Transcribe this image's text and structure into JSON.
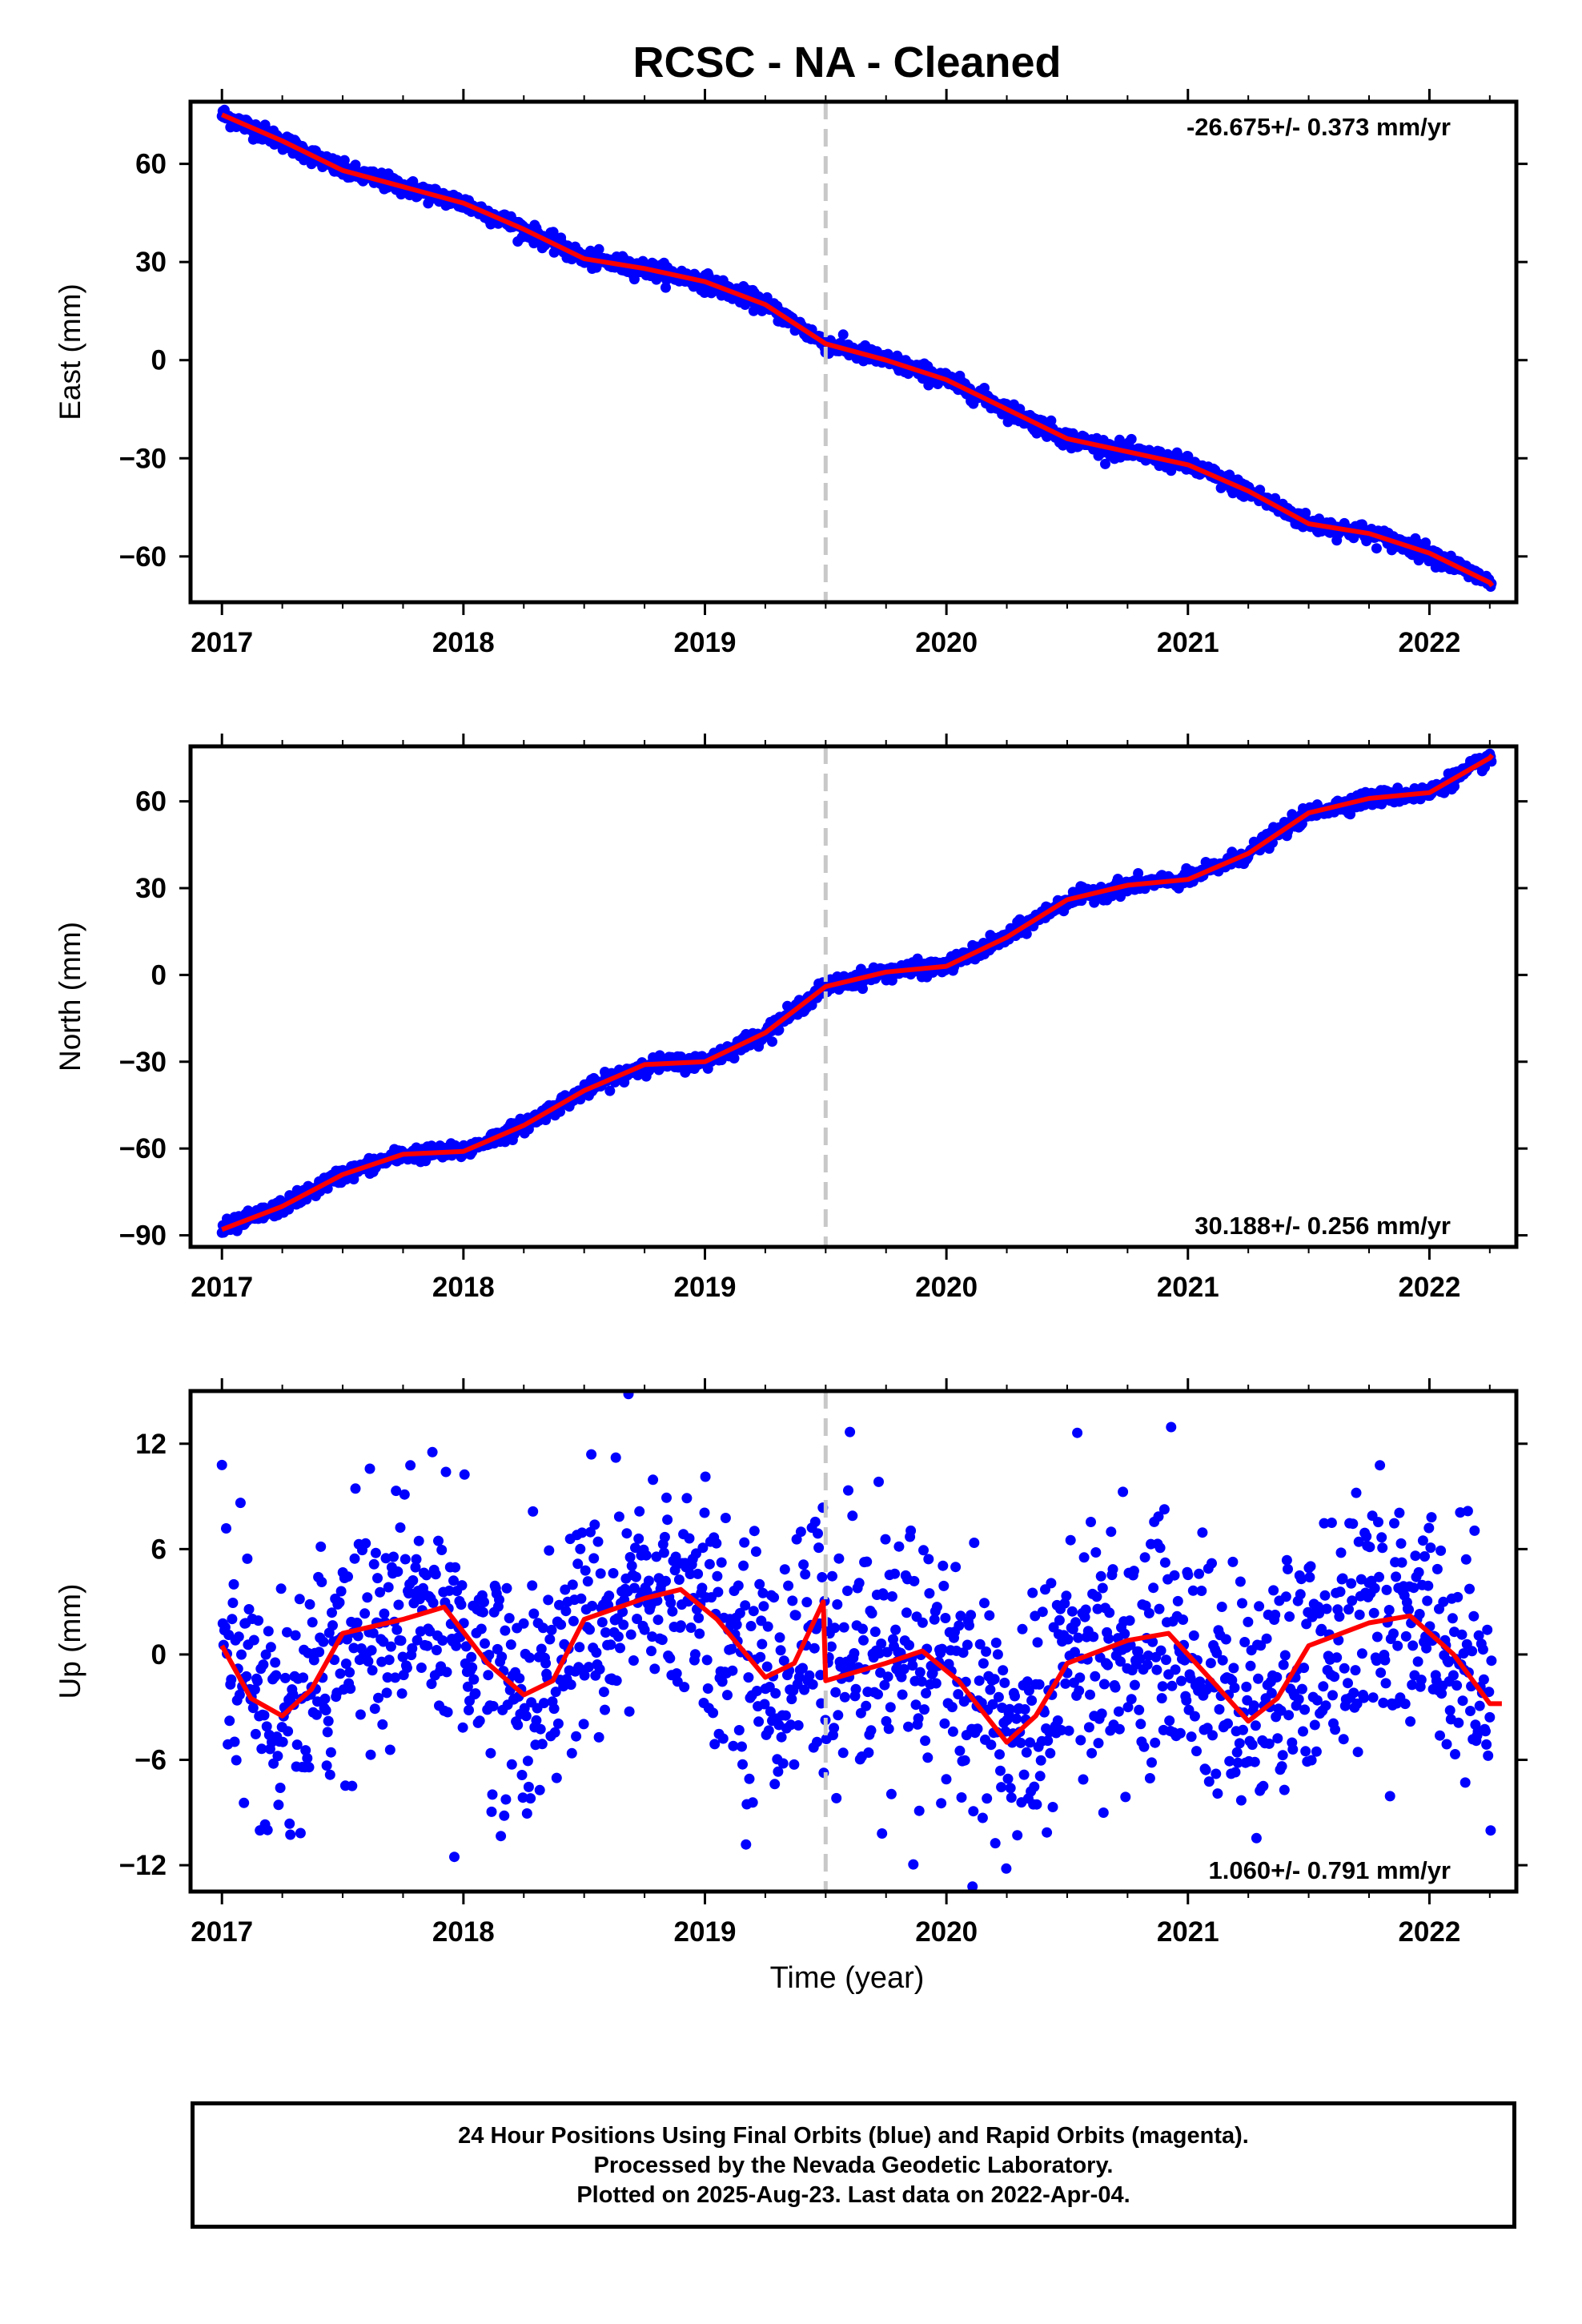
{
  "title": "RCSC  - NA - Cleaned",
  "xlabel": "Time (year)",
  "footer": {
    "line1": "24 Hour Positions Using Final Orbits (blue) and Rapid Orbits (magenta).",
    "line2": "Processed by the Nevada Geodetic Laboratory.",
    "line3": "Plotted on 2025-Aug-23. Last data on 2022-Apr-04."
  },
  "colors": {
    "points": "#0000ff",
    "fit": "#ff0000",
    "event_line": "#c8c8c8",
    "frame": "#000000"
  },
  "chart_data": [
    {
      "type": "scatter",
      "ylabel": "East (mm)",
      "rate_label": "-26.675+/- 0.373 mm/yr",
      "rate_position": "top-right",
      "xlim": [
        2016.87,
        2022.36
      ],
      "ylim": [
        -74,
        79
      ],
      "yticks": [
        -60,
        -30,
        0,
        30,
        60
      ],
      "xticks": [
        2017,
        2018,
        2019,
        2020,
        2021,
        2022
      ],
      "event_line_x": 2019.5,
      "noise": 1.3,
      "fit": [
        [
          2017.0,
          75
        ],
        [
          2017.25,
          67
        ],
        [
          2017.5,
          58
        ],
        [
          2017.75,
          53
        ],
        [
          2018.0,
          48
        ],
        [
          2018.25,
          40
        ],
        [
          2018.5,
          31
        ],
        [
          2018.75,
          28
        ],
        [
          2019.0,
          24
        ],
        [
          2019.25,
          17
        ],
        [
          2019.5,
          5
        ],
        [
          2019.75,
          0
        ],
        [
          2020.0,
          -6
        ],
        [
          2020.25,
          -15
        ],
        [
          2020.5,
          -24
        ],
        [
          2020.75,
          -28
        ],
        [
          2021.0,
          -32
        ],
        [
          2021.25,
          -40
        ],
        [
          2021.5,
          -50
        ],
        [
          2021.75,
          -53
        ],
        [
          2022.0,
          -59
        ],
        [
          2022.25,
          -68
        ],
        [
          2022.26,
          -69
        ]
      ]
    },
    {
      "type": "scatter",
      "ylabel": "North (mm)",
      "rate_label": "30.188+/- 0.256 mm/yr",
      "rate_position": "bottom-right",
      "xlim": [
        2016.87,
        2022.36
      ],
      "ylim": [
        -94,
        79
      ],
      "yticks": [
        -90,
        -60,
        -30,
        0,
        30,
        60
      ],
      "xticks": [
        2017,
        2018,
        2019,
        2020,
        2021,
        2022
      ],
      "event_line_x": 2019.5,
      "noise": 1.3,
      "fit": [
        [
          2017.0,
          -88
        ],
        [
          2017.25,
          -80
        ],
        [
          2017.5,
          -69
        ],
        [
          2017.75,
          -62
        ],
        [
          2018.0,
          -61
        ],
        [
          2018.25,
          -52
        ],
        [
          2018.5,
          -40
        ],
        [
          2018.75,
          -31
        ],
        [
          2019.0,
          -30
        ],
        [
          2019.25,
          -20
        ],
        [
          2019.5,
          -4
        ],
        [
          2019.75,
          1
        ],
        [
          2020.0,
          3
        ],
        [
          2020.25,
          13
        ],
        [
          2020.5,
          26
        ],
        [
          2020.75,
          31
        ],
        [
          2021.0,
          33
        ],
        [
          2021.25,
          42
        ],
        [
          2021.5,
          56
        ],
        [
          2021.75,
          61
        ],
        [
          2022.0,
          63
        ],
        [
          2022.25,
          75
        ],
        [
          2022.26,
          76
        ]
      ]
    },
    {
      "type": "scatter",
      "ylabel": "Up (mm)",
      "rate_label": "1.060+/- 0.791 mm/yr",
      "rate_position": "bottom-right",
      "xlim": [
        2016.87,
        2022.36
      ],
      "ylim": [
        -13.5,
        15
      ],
      "yticks": [
        -12,
        -6,
        0,
        6,
        12
      ],
      "xticks": [
        2017,
        2018,
        2019,
        2020,
        2021,
        2022
      ],
      "event_line_x": 2019.5,
      "noise": 3.6,
      "fit": [
        [
          2017.0,
          0.5
        ],
        [
          2017.12,
          -2.5
        ],
        [
          2017.25,
          -3.5
        ],
        [
          2017.37,
          -2
        ],
        [
          2017.5,
          1.2
        ],
        [
          2017.75,
          2
        ],
        [
          2017.92,
          2.7
        ],
        [
          2018.1,
          -0.5
        ],
        [
          2018.25,
          -2.3
        ],
        [
          2018.37,
          -1.5
        ],
        [
          2018.5,
          2
        ],
        [
          2018.75,
          3.2
        ],
        [
          2018.9,
          3.7
        ],
        [
          2019.05,
          2
        ],
        [
          2019.25,
          -1.3
        ],
        [
          2019.37,
          -0.5
        ],
        [
          2019.49,
          3
        ],
        [
          2019.5,
          -1.5
        ],
        [
          2019.75,
          -0.5
        ],
        [
          2019.9,
          0.2
        ],
        [
          2020.05,
          -1.5
        ],
        [
          2020.25,
          -5
        ],
        [
          2020.37,
          -3.5
        ],
        [
          2020.5,
          -0.5
        ],
        [
          2020.75,
          0.8
        ],
        [
          2020.92,
          1.2
        ],
        [
          2021.1,
          -1.5
        ],
        [
          2021.25,
          -3.8
        ],
        [
          2021.37,
          -2.5
        ],
        [
          2021.5,
          0.5
        ],
        [
          2021.75,
          1.8
        ],
        [
          2021.92,
          2.2
        ],
        [
          2022.1,
          0
        ],
        [
          2022.25,
          -2.8
        ],
        [
          2022.3,
          -2.8
        ]
      ]
    }
  ]
}
